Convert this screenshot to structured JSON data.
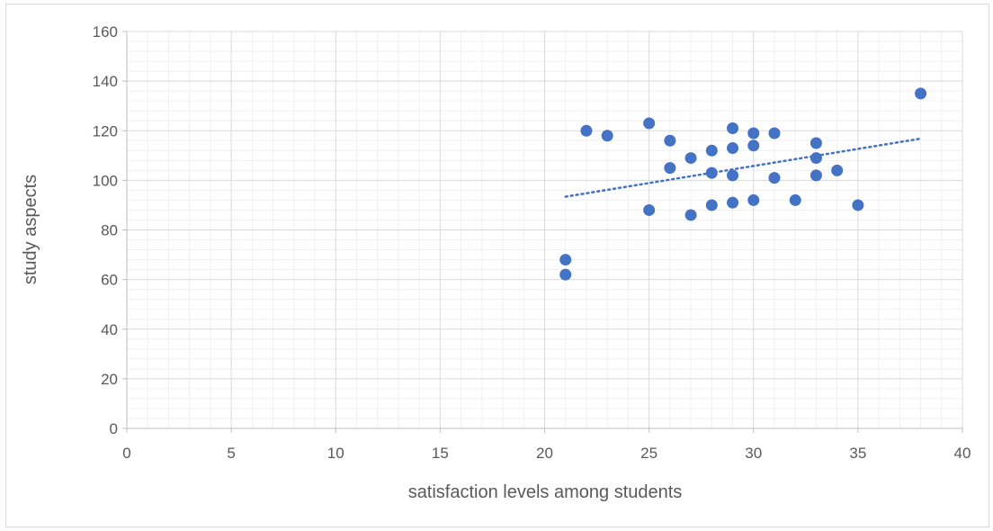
{
  "chart_data": {
    "type": "scatter",
    "title": "",
    "xlabel": "satisfaction levels among students",
    "ylabel": "study aspects",
    "xlim": [
      0,
      40
    ],
    "ylim": [
      0,
      160
    ],
    "x_ticks": [
      0,
      5,
      10,
      15,
      20,
      25,
      30,
      35,
      40
    ],
    "y_ticks": [
      0,
      20,
      40,
      60,
      80,
      100,
      120,
      140,
      160
    ],
    "grid": "major and minor",
    "legend": "none",
    "colors": {
      "marker": "#4472c4",
      "trendline": "#4472c4",
      "major_grid": "#d9d9d9",
      "minor_grid": "#f0f0f0"
    },
    "series": [
      {
        "points": [
          [
            21,
            68
          ],
          [
            21,
            62
          ],
          [
            22,
            120
          ],
          [
            23,
            118
          ],
          [
            25,
            123
          ],
          [
            25,
            88
          ],
          [
            26,
            116
          ],
          [
            26,
            105
          ],
          [
            27,
            109
          ],
          [
            27,
            86
          ],
          [
            28,
            112
          ],
          [
            28,
            103
          ],
          [
            28,
            90
          ],
          [
            29,
            121
          ],
          [
            29,
            113
          ],
          [
            29,
            102
          ],
          [
            29,
            91
          ],
          [
            30,
            119
          ],
          [
            30,
            114
          ],
          [
            30,
            92
          ],
          [
            31,
            119
          ],
          [
            31,
            101
          ],
          [
            32,
            92
          ],
          [
            33,
            115
          ],
          [
            33,
            109
          ],
          [
            33,
            102
          ],
          [
            34,
            104
          ],
          [
            35,
            90
          ],
          [
            38,
            135
          ]
        ]
      }
    ],
    "trendline": {
      "type": "linear",
      "style": "dotted",
      "x_start": 21,
      "y_start": 93.4,
      "x_end": 38,
      "y_end": 116.8
    }
  }
}
